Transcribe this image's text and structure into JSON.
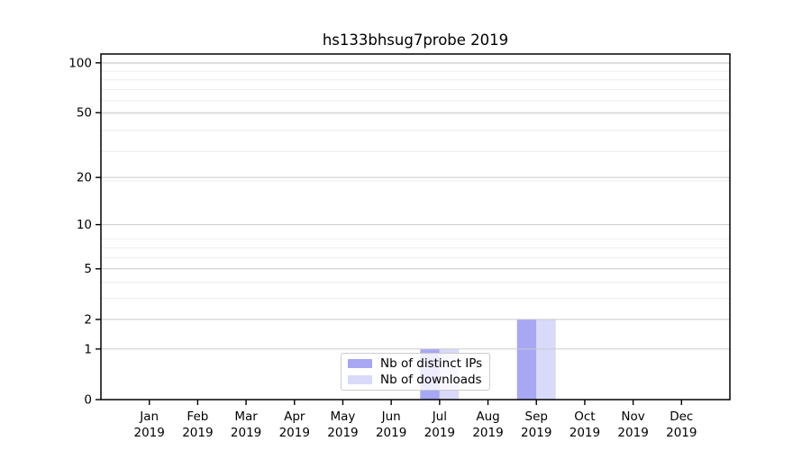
{
  "chart_data": {
    "type": "bar",
    "title": "hs133bhsug7probe 2019",
    "categories": [
      "Jan",
      "Feb",
      "Mar",
      "Apr",
      "May",
      "Jun",
      "Jul",
      "Aug",
      "Sep",
      "Oct",
      "Nov",
      "Dec"
    ],
    "x_year_label": "2019",
    "series": [
      {
        "name": "Nb of distinct IPs",
        "color": "#a7a7f4",
        "values": [
          0,
          0,
          0,
          0,
          0,
          0,
          1,
          0,
          2,
          0,
          0,
          0
        ]
      },
      {
        "name": "Nb of downloads",
        "color": "#d9d9fa",
        "values": [
          0,
          0,
          0,
          0,
          0,
          0,
          1,
          0,
          2,
          0,
          0,
          0
        ]
      }
    ],
    "y_ticks": [
      0,
      1,
      2,
      5,
      10,
      20,
      50,
      100
    ],
    "y_minor_ticks": [
      3,
      4,
      6,
      7,
      8,
      19,
      29,
      39,
      49,
      59,
      69,
      79,
      89,
      99
    ],
    "yscale": "log1p",
    "ylim": [
      0,
      113
    ],
    "xlabel": "",
    "ylabel": "",
    "grid": "horizontal major and minor, drawn above bars",
    "legend_position": "lower center, overlapping Jul bars",
    "colors": {
      "major_grid": "#c9c9c9",
      "minor_grid": "#ececec",
      "spine": "#000000",
      "tick": "#000000",
      "background": "#ffffff"
    }
  }
}
